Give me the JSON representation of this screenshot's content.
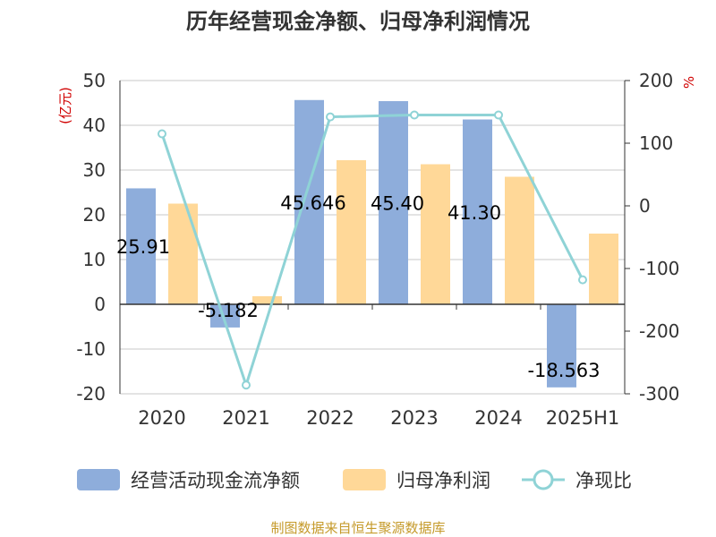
{
  "chart_data": {
    "type": "bar",
    "title": "历年经营现金净额、归母净利润情况",
    "categories": [
      "2020",
      "2021",
      "2022",
      "2023",
      "2024",
      "2025H1"
    ],
    "series": [
      {
        "name": "经营活动现金流净额",
        "type": "bar",
        "axis": "left",
        "color": "#8eaddb",
        "values": [
          25.91,
          -5.182,
          45.646,
          45.4,
          41.3,
          -18.563
        ]
      },
      {
        "name": "归母净利润",
        "type": "bar",
        "axis": "left",
        "color": "#ffd898",
        "values": [
          22.5,
          1.8,
          32.2,
          31.3,
          28.5,
          15.8
        ]
      },
      {
        "name": "净现比",
        "type": "line",
        "axis": "right",
        "color": "#8fd3d6",
        "values": [
          115,
          -286,
          142,
          145,
          145,
          -118
        ]
      }
    ],
    "data_labels": [
      "25.91",
      "-5.182",
      "45.646",
      "45.40",
      "41.30",
      "-18.563"
    ],
    "left_axis": {
      "unit": "(亿元)",
      "ylim": [
        -20,
        50
      ],
      "ticks": [
        50,
        40,
        30,
        20,
        10,
        0,
        -10,
        -20
      ]
    },
    "right_axis": {
      "unit": "%",
      "ylim": [
        -300,
        200
      ],
      "ticks": [
        200,
        100,
        0,
        -100,
        -200,
        -300
      ]
    },
    "grid": true,
    "legend": "bottom"
  },
  "source": "制图数据来自恒生聚源数据库"
}
